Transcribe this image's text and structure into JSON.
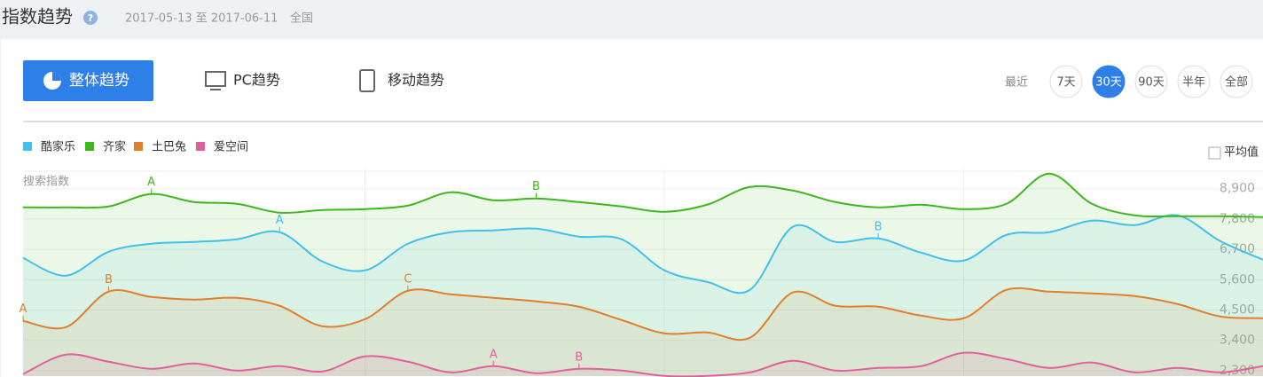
{
  "header": {
    "title": "指数趋势",
    "date_range": "2017-05-13 至 2017-06-11",
    "region": "全国"
  },
  "tabs": [
    "整体趋势",
    "PC趋势",
    "移动趋势"
  ],
  "range": {
    "label": "最近",
    "options": [
      "7天",
      "30天",
      "90天",
      "半年",
      "全部"
    ],
    "active": 1
  },
  "average_toggle": "平均值",
  "chart_data": {
    "type": "line",
    "ylabel": "搜索指数",
    "ylim": [
      2100,
      9600
    ],
    "yticks": [
      {
        "value": 2300,
        "label": "2,300"
      },
      {
        "value": 3400,
        "label": "3,400"
      },
      {
        "value": 4500,
        "label": "4,500"
      },
      {
        "value": 5600,
        "label": "5,600"
      },
      {
        "value": 6700,
        "label": "6,700"
      },
      {
        "value": 7800,
        "label": "7,800"
      },
      {
        "value": 8900,
        "label": "8,900"
      }
    ],
    "grid": true,
    "series": [
      {
        "name": "酷家乐",
        "color": "#41c0ec",
        "values": [
          6389,
          5745,
          6614,
          6904,
          6969,
          7065,
          7323,
          6260,
          5938,
          6904,
          7323,
          7387,
          7451,
          7162,
          7065,
          5938,
          5520,
          5230,
          7516,
          6969,
          7097,
          6582,
          6292,
          7226,
          7323,
          7741,
          7580,
          7934,
          7001,
          6325
        ],
        "markers": [
          {
            "index": 6,
            "label": "A"
          },
          {
            "index": 20,
            "label": "B"
          }
        ]
      },
      {
        "name": "齐家",
        "color": "#3cb81c",
        "values": [
          8224,
          8224,
          8256,
          8707,
          8417,
          8353,
          8031,
          8127,
          8160,
          8288,
          8771,
          8482,
          8546,
          8417,
          8256,
          8063,
          8320,
          8964,
          8836,
          8417,
          8224,
          8320,
          8160,
          8353,
          9447,
          8353,
          7934,
          7902,
          7902,
          7870
        ],
        "markers": [
          {
            "index": 3,
            "label": "A"
          },
          {
            "index": 12,
            "label": "B"
          }
        ]
      },
      {
        "name": "土巴兔",
        "color": "#e07f2c",
        "values": [
          4104,
          3878,
          5166,
          4973,
          4876,
          4940,
          4651,
          3911,
          4168,
          5198,
          5069,
          4940,
          4812,
          4619,
          4136,
          3653,
          3685,
          3492,
          5134,
          4651,
          4619,
          4297,
          4200,
          5230,
          5166,
          5101,
          5005,
          4715,
          4265,
          4200
        ],
        "markers": [
          {
            "index": 0,
            "label": "A"
          },
          {
            "index": 2,
            "label": "B"
          },
          {
            "index": 9,
            "label": "C"
          }
        ]
      },
      {
        "name": "爱空间",
        "color": "#e0609c",
        "values": [
          2172,
          2880,
          2623,
          2365,
          2558,
          2301,
          2462,
          2269,
          2816,
          2623,
          2236,
          2462,
          2204,
          2365,
          2301,
          2107,
          2107,
          2236,
          2655,
          2301,
          2398,
          2462,
          2945,
          2719,
          2398,
          2591,
          2236,
          2398,
          2236,
          2462
        ],
        "markers": [
          {
            "index": 11,
            "label": "A"
          },
          {
            "index": 13,
            "label": "B"
          }
        ]
      }
    ]
  }
}
